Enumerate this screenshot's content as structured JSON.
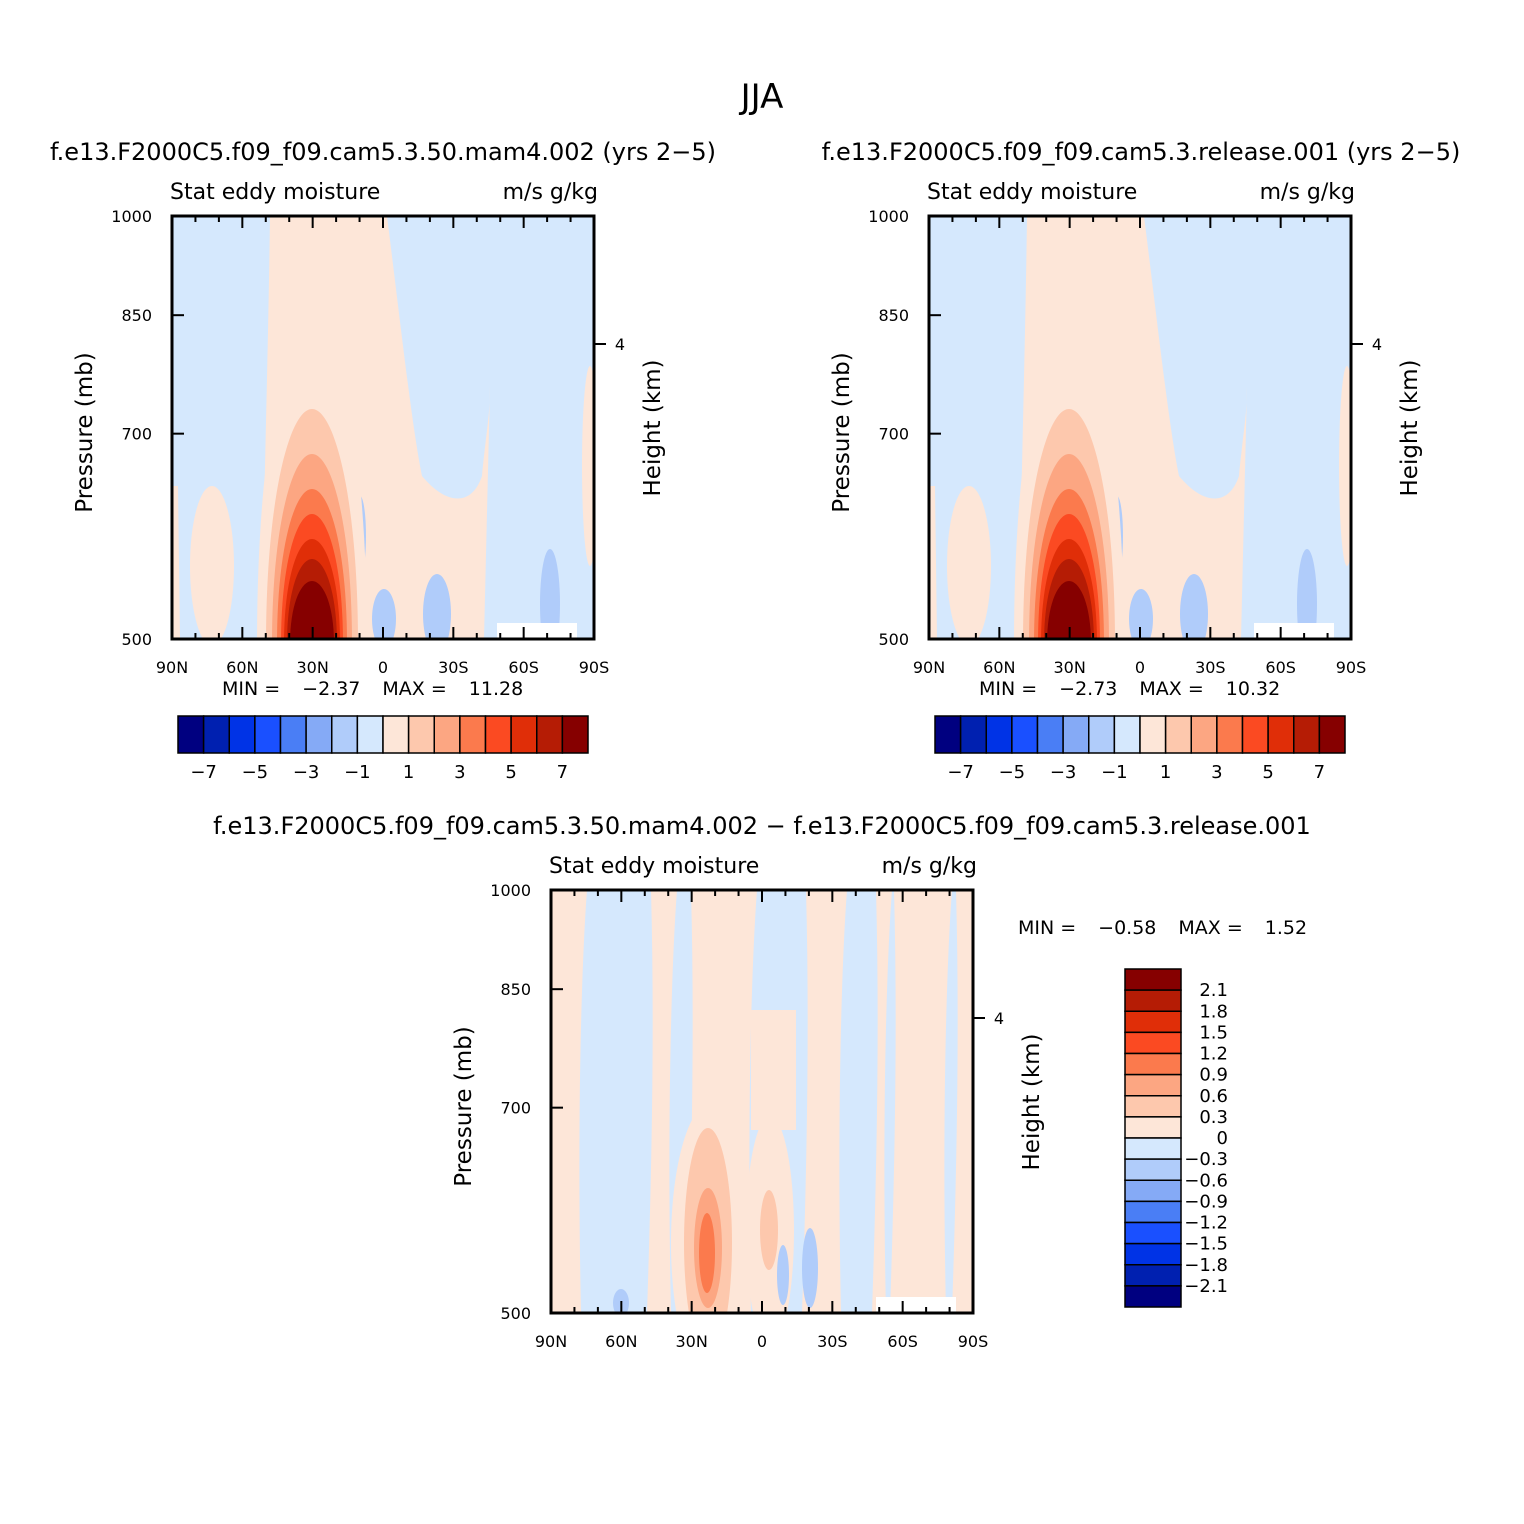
{
  "title": "JJA",
  "colors": {
    "neg": [
      "#000080",
      "#0020b0",
      "#0033e6",
      "#1a50ff",
      "#4a7ef5",
      "#85aaf6",
      "#b0ccfa",
      "#d5e8fd"
    ],
    "pos": [
      "#fde6d8",
      "#fdc8ad",
      "#fca682",
      "#fb7a4d",
      "#fb4a22",
      "#e02e08",
      "#b51c05",
      "#860000"
    ]
  },
  "chart_data": [
    {
      "type": "heatmap",
      "panel": "top-left",
      "title": "f.e13.F2000C5.f09_f09.cam5.3.50.mam4.002 (yrs 2−5)",
      "subtitle_left": "Stat eddy moisture",
      "subtitle_right": "m/s g/kg",
      "ylabel": "Pressure (mb)",
      "ylabel_right": "Height (km)",
      "x_ticks": [
        "90N",
        "60N",
        "30N",
        "0",
        "30S",
        "60S",
        "90S"
      ],
      "y_ticks": [
        "500",
        "700",
        "850",
        "1000"
      ],
      "y_right_ticks": [
        "4"
      ],
      "min_label": "MIN =",
      "min": "−2.37",
      "max_label": "MAX =",
      "max": "11.28",
      "colorbar_labels": [
        "−7",
        "−5",
        "−3",
        "−1",
        "1",
        "3",
        "5",
        "7"
      ],
      "xlim": [
        90,
        -90
      ],
      "ylim": [
        1000,
        500
      ],
      "y_scale": "log"
    },
    {
      "type": "heatmap",
      "panel": "top-right",
      "title": "f.e13.F2000C5.f09_f09.cam5.3.release.001 (yrs 2−5)",
      "subtitle_left": "Stat eddy moisture",
      "subtitle_right": "m/s g/kg",
      "ylabel": "Pressure (mb)",
      "ylabel_right": "Height (km)",
      "x_ticks": [
        "90N",
        "60N",
        "30N",
        "0",
        "30S",
        "60S",
        "90S"
      ],
      "y_ticks": [
        "500",
        "700",
        "850",
        "1000"
      ],
      "y_right_ticks": [
        "4"
      ],
      "min_label": "MIN =",
      "min": "−2.73",
      "max_label": "MAX =",
      "max": "10.32",
      "colorbar_labels": [
        "−7",
        "−5",
        "−3",
        "−1",
        "1",
        "3",
        "5",
        "7"
      ],
      "xlim": [
        90,
        -90
      ],
      "ylim": [
        1000,
        500
      ],
      "y_scale": "log"
    },
    {
      "type": "heatmap",
      "panel": "bottom",
      "title": "f.e13.F2000C5.f09_f09.cam5.3.50.mam4.002 − f.e13.F2000C5.f09_f09.cam5.3.release.001",
      "subtitle_left": "Stat eddy moisture",
      "subtitle_right": "m/s g/kg",
      "ylabel": "Pressure (mb)",
      "ylabel_right": "Height (km)",
      "x_ticks": [
        "90N",
        "60N",
        "30N",
        "0",
        "30S",
        "60S",
        "90S"
      ],
      "y_ticks": [
        "500",
        "700",
        "850",
        "1000"
      ],
      "y_right_ticks": [
        "4"
      ],
      "min_label": "MIN =",
      "min": "−0.58",
      "max_label": "MAX =",
      "max": "1.52",
      "colorbar_labels": [
        "2.1",
        "1.8",
        "1.5",
        "1.2",
        "0.9",
        "0.6",
        "0.3",
        "0",
        "−0.3",
        "−0.6",
        "−0.9",
        "−1.2",
        "−1.5",
        "−1.8",
        "−2.1"
      ],
      "xlim": [
        90,
        -90
      ],
      "ylim": [
        1000,
        500
      ],
      "y_scale": "log"
    }
  ]
}
